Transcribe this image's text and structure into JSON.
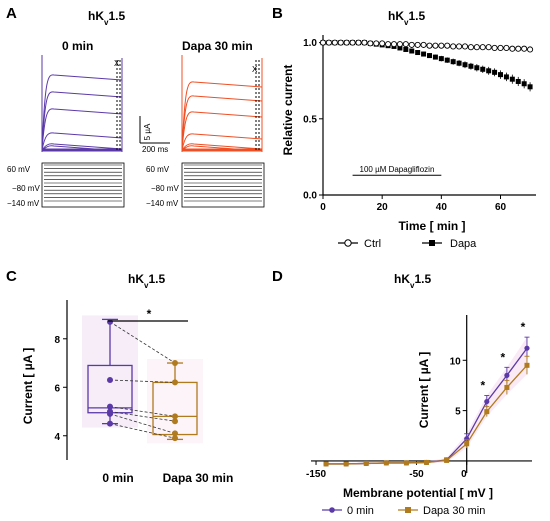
{
  "colors": {
    "ctrl": "#5b3aa8",
    "dapa": "#b07a1e",
    "dapa_trace": "#ef4f24",
    "black": "#000000"
  },
  "panels": {
    "A": "A",
    "B": "B",
    "C": "C",
    "D": "D"
  },
  "panelA": {
    "title_main": "hK",
    "title_sub": "v",
    "title_tail": "1.5",
    "cond1": "0 min",
    "cond2": "Dapa 30 min",
    "scale_y": "5 µA",
    "scale_x": "200 ms",
    "marker": "X",
    "v_labels": [
      "60 mV",
      "−80 mV",
      "−140 mV"
    ]
  },
  "chart_data": [
    {
      "type": "scatter",
      "panel": "B",
      "title_main": "hK",
      "title_sub": "v",
      "title_tail": "1.5",
      "xlabel": "Time [ min ]",
      "ylabel": "Relative current",
      "xlim": [
        0,
        72
      ],
      "ylim": [
        0,
        1.05
      ],
      "xticks": [
        "0",
        "20",
        "40",
        "60"
      ],
      "yticks": [
        "0.0",
        "0.5",
        "1.0"
      ],
      "annotation": "100 µM Dapagliflozin",
      "annotation_x": [
        10,
        40
      ],
      "legend": [
        "Ctrl",
        "Dapa"
      ],
      "x": [
        0,
        2,
        4,
        6,
        8,
        10,
        12,
        14,
        16,
        18,
        20,
        22,
        24,
        26,
        28,
        30,
        32,
        34,
        36,
        38,
        40,
        42,
        44,
        46,
        48,
        50,
        52,
        54,
        56,
        58,
        60,
        62,
        64,
        66,
        68,
        70
      ],
      "series": [
        {
          "name": "Ctrl",
          "values": [
            1.0,
            1.0,
            1.0,
            1.0,
            1.0,
            1.0,
            1.0,
            1.0,
            0.995,
            0.995,
            0.995,
            0.99,
            0.99,
            0.99,
            0.99,
            0.985,
            0.985,
            0.985,
            0.98,
            0.98,
            0.98,
            0.98,
            0.975,
            0.975,
            0.975,
            0.97,
            0.97,
            0.97,
            0.97,
            0.965,
            0.965,
            0.965,
            0.96,
            0.96,
            0.96,
            0.955
          ]
        },
        {
          "name": "Dapa",
          "values": [
            1.0,
            1.0,
            1.0,
            1.0,
            1.0,
            1.0,
            1.0,
            1.0,
            0.995,
            0.99,
            0.985,
            0.98,
            0.975,
            0.965,
            0.955,
            0.945,
            0.935,
            0.925,
            0.915,
            0.905,
            0.895,
            0.885,
            0.875,
            0.865,
            0.855,
            0.845,
            0.835,
            0.825,
            0.815,
            0.805,
            0.79,
            0.775,
            0.76,
            0.745,
            0.73,
            0.71
          ],
          "errors": [
            0,
            0,
            0,
            0,
            0,
            0,
            0,
            0,
            0.005,
            0.005,
            0.008,
            0.008,
            0.01,
            0.01,
            0.012,
            0.012,
            0.014,
            0.014,
            0.016,
            0.016,
            0.018,
            0.018,
            0.02,
            0.02,
            0.022,
            0.022,
            0.024,
            0.024,
            0.026,
            0.026,
            0.028,
            0.028,
            0.03,
            0.03,
            0.03,
            0.03
          ]
        }
      ]
    },
    {
      "type": "box",
      "panel": "C",
      "title_main": "hK",
      "title_sub": "v",
      "title_tail": "1.5",
      "ylabel": "Current [ µA ]",
      "ylim": [
        3,
        9.6
      ],
      "yticks": [
        "4",
        "6",
        "8"
      ],
      "categories": [
        "0 min",
        "Dapa 30 min"
      ],
      "significance": "*",
      "boxes": [
        {
          "name": "0 min",
          "min": 4.5,
          "q1": 4.95,
          "median": 5.15,
          "q3": 6.9,
          "max": 8.8
        },
        {
          "name": "Dapa 30 min",
          "min": 3.85,
          "q1": 4.05,
          "median": 4.8,
          "q3": 6.2,
          "max": 7.0
        }
      ],
      "paired": [
        [
          8.7,
          7.0
        ],
        [
          6.3,
          6.2
        ],
        [
          5.2,
          4.8
        ],
        [
          5.0,
          4.6
        ],
        [
          4.9,
          4.1
        ],
        [
          4.5,
          3.9
        ]
      ]
    },
    {
      "type": "line",
      "panel": "D",
      "title_main": "hK",
      "title_sub": "v",
      "title_tail": "1.5",
      "xlabel": "Membrane potential [ mV ]",
      "ylabel": "Current [ µA ]",
      "xlim": [
        -155,
        65
      ],
      "ylim": [
        -1.2,
        14.5
      ],
      "xticks": [
        "-150",
        "-50",
        "0"
      ],
      "yticks": [
        "5",
        "10"
      ],
      "legend": [
        "0 min",
        "Dapa 30 min"
      ],
      "significance": [
        {
          "x": 20,
          "label": "*"
        },
        {
          "x": 40,
          "label": "*"
        },
        {
          "x": 60,
          "label": "*"
        }
      ],
      "x": [
        -140,
        -120,
        -100,
        -80,
        -60,
        -40,
        -20,
        0,
        20,
        40,
        60
      ],
      "series": [
        {
          "name": "0 min",
          "values": [
            -0.3,
            -0.3,
            -0.25,
            -0.2,
            -0.2,
            -0.15,
            0.1,
            2.2,
            5.9,
            8.5,
            11.2
          ],
          "errors": [
            0.1,
            0.1,
            0.1,
            0.1,
            0.1,
            0.1,
            0.2,
            0.5,
            0.6,
            0.8,
            1.1
          ]
        },
        {
          "name": "Dapa 30 min",
          "values": [
            -0.3,
            -0.3,
            -0.25,
            -0.2,
            -0.2,
            -0.15,
            0.05,
            1.7,
            4.9,
            7.3,
            9.5
          ],
          "errors": [
            0.1,
            0.1,
            0.1,
            0.1,
            0.1,
            0.1,
            0.2,
            0.4,
            0.5,
            0.7,
            0.9
          ]
        }
      ]
    }
  ]
}
